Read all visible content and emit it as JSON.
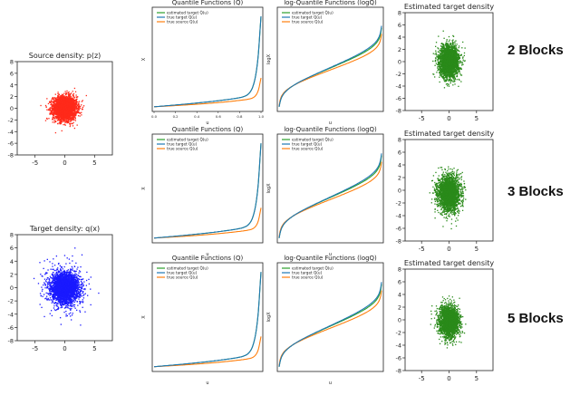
{
  "colors": {
    "source": "#ff2a1a",
    "target": "#1a1aff",
    "estimated": "#2a8a1a",
    "line_green": "#2ca02c",
    "line_blue": "#1f77b4",
    "line_orange": "#ff7f0e"
  },
  "row_labels": [
    "2 Blocks",
    "3 Blocks",
    "5 Blocks"
  ],
  "chart_data": [
    {
      "id": "source",
      "type": "scatter",
      "title": "Source density: p(z)",
      "xlim": [
        -8,
        8
      ],
      "ylim": [
        -8,
        8
      ],
      "xticks": [
        -5,
        0,
        5
      ],
      "yticks": [
        -8,
        -6,
        -4,
        -2,
        0,
        2,
        4,
        6,
        8
      ],
      "distribution": {
        "center": [
          0,
          0
        ],
        "std": [
          1,
          1
        ],
        "n": 3000
      },
      "color": "#ff2a1a"
    },
    {
      "id": "target",
      "type": "scatter",
      "title": "Target density: q(x)",
      "xlim": [
        -8,
        8
      ],
      "ylim": [
        -8,
        8
      ],
      "xticks": [
        -5,
        0,
        5
      ],
      "yticks": [
        -8,
        -6,
        -4,
        -2,
        0,
        2,
        4,
        6,
        8
      ],
      "distribution": {
        "center": [
          0,
          0
        ],
        "std": [
          1.6,
          1.6
        ],
        "n": 3000,
        "heavy_tail": true
      },
      "color": "#1a1aff"
    },
    {
      "id": "quantile-2",
      "type": "line",
      "title": "Quantile Functions (Q)",
      "xlabel": "u",
      "ylabel": "X",
      "xlim": [
        0,
        1
      ],
      "xticks": [
        0.0,
        0.2,
        0.4,
        0.6,
        0.8,
        1.0
      ],
      "legend": [
        "estimated target Q̂(u)",
        "true target Q(u)",
        "true source Q(u)"
      ],
      "series_shape": "quantile"
    },
    {
      "id": "logquantile-2",
      "type": "line",
      "title": "log-Quantile Functions (logQ)",
      "xlabel": "u",
      "ylabel": "logX",
      "xlim": [
        0,
        1
      ],
      "legend": [
        "estimated target Q̂(u)",
        "true target Q(u)",
        "true source Q(u)"
      ],
      "series_shape": "logquantile"
    },
    {
      "id": "estimated-2",
      "type": "scatter",
      "title": "Estimated target density",
      "xlim": [
        -8,
        8
      ],
      "ylim": [
        -8,
        8
      ],
      "xticks": [
        -5,
        0,
        5
      ],
      "yticks": [
        -8,
        -6,
        -4,
        -2,
        0,
        2,
        4,
        6,
        8
      ],
      "distribution": {
        "center": [
          0,
          0
        ],
        "std": [
          0.9,
          1.3
        ],
        "n": 2500
      },
      "color": "#2a8a1a"
    },
    {
      "id": "quantile-3",
      "type": "line",
      "title": "Quantile Functions (Q)",
      "xlabel": "u",
      "ylabel": "X",
      "xlim": [
        0,
        1
      ],
      "legend": [
        "estimated target Q̂(u)",
        "true target Q(u)",
        "true source Q(u)"
      ],
      "series_shape": "quantile"
    },
    {
      "id": "logquantile-3",
      "type": "line",
      "title": "log-Quantile Functions (logQ)",
      "xlabel": "u",
      "ylabel": "logX",
      "xlim": [
        0,
        1
      ],
      "legend": [
        "estimated target Q̂(u)",
        "true target Q(u)",
        "true source Q(u)"
      ],
      "series_shape": "logquantile"
    },
    {
      "id": "estimated-3",
      "type": "scatter",
      "title": "Estimated target density",
      "xlim": [
        -8,
        8
      ],
      "ylim": [
        -8,
        8
      ],
      "xticks": [
        -5,
        0,
        5
      ],
      "yticks": [
        -8,
        -6,
        -4,
        -2,
        0,
        2,
        4,
        6,
        8
      ],
      "distribution": {
        "center": [
          0,
          -0.5
        ],
        "std": [
          1.0,
          1.4
        ],
        "n": 2500
      },
      "color": "#2a8a1a"
    },
    {
      "id": "quantile-5",
      "type": "line",
      "title": "Quantile Functions (Q)",
      "xlabel": "u",
      "ylabel": "X",
      "xlim": [
        0,
        1
      ],
      "legend": [
        "estimated target Q̂(u)",
        "true target Q(u)",
        "true source Q(u)"
      ],
      "series_shape": "quantile"
    },
    {
      "id": "logquantile-5",
      "type": "line",
      "title": "log-Quantile Functions (logQ)",
      "xlabel": "u",
      "ylabel": "logX",
      "xlim": [
        0,
        1
      ],
      "legend": [
        "estimated target Q̂(u)",
        "true target Q(u)",
        "true source Q(u)"
      ],
      "series_shape": "logquantile"
    },
    {
      "id": "estimated-5",
      "type": "scatter",
      "title": "Estimated target density",
      "xlim": [
        -8,
        8
      ],
      "ylim": [
        -8,
        8
      ],
      "xticks": [
        -5,
        0,
        5
      ],
      "yticks": [
        -8,
        -6,
        -4,
        -2,
        0,
        2,
        4,
        6,
        8
      ],
      "distribution": {
        "center": [
          0,
          -0.3
        ],
        "std": [
          0.9,
          1.2
        ],
        "n": 2500
      },
      "color": "#2a8a1a"
    }
  ]
}
